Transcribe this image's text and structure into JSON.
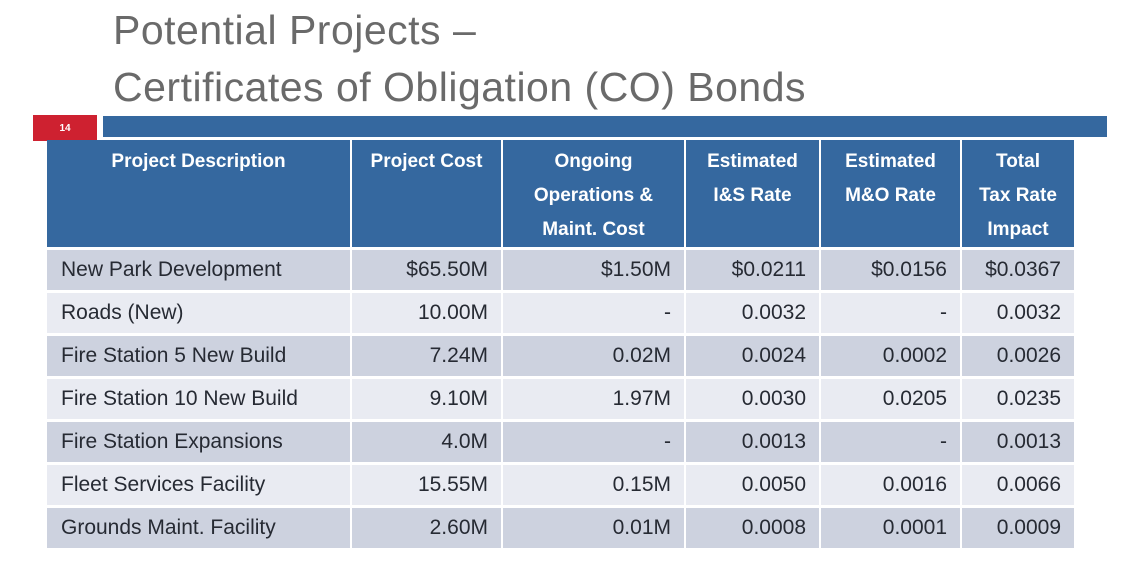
{
  "slide": {
    "title": "Potential Projects –\nCertificates of Obligation (CO) Bonds",
    "page_number": "14"
  },
  "colors": {
    "accent_blue": "#35689F",
    "badge_red": "#CE2130",
    "row_odd": "#CDD2DF",
    "row_even": "#E9EBF2",
    "title_gray": "#6A6A6A",
    "body_text": "#262A33"
  },
  "table": {
    "headers": [
      "Project Description",
      "Project Cost",
      "Ongoing\nOperations &\nMaint. Cost",
      "Estimated\nI&S Rate",
      "Estimated\nM&O Rate",
      "Total\nTax Rate\nImpact"
    ],
    "rows": [
      {
        "cells": [
          "New Park Development",
          "$65.50M",
          "$1.50M",
          "$0.0211",
          "$0.0156",
          "$0.0367"
        ]
      },
      {
        "cells": [
          "Roads (New)",
          "10.00M",
          "-",
          "0.0032",
          "-",
          "0.0032"
        ]
      },
      {
        "cells": [
          "Fire Station 5 New Build",
          "7.24M",
          "0.02M",
          "0.0024",
          "0.0002",
          "0.0026"
        ]
      },
      {
        "cells": [
          "Fire Station 10 New Build",
          "9.10M",
          "1.97M",
          "0.0030",
          "0.0205",
          "0.0235"
        ]
      },
      {
        "cells": [
          "Fire Station Expansions",
          "4.0M",
          "-",
          "0.0013",
          "-",
          "0.0013"
        ]
      },
      {
        "cells": [
          "Fleet Services Facility",
          "15.55M",
          "0.15M",
          "0.0050",
          "0.0016",
          "0.0066"
        ]
      },
      {
        "cells": [
          "Grounds Maint. Facility",
          "2.60M",
          "0.01M",
          "0.0008",
          "0.0001",
          "0.0009"
        ]
      }
    ]
  },
  "chart_data": {
    "type": "table",
    "title": "Potential Projects – Certificates of Obligation (CO) Bonds",
    "categories": [
      "New Park Development",
      "Roads (New)",
      "Fire Station 5 New Build",
      "Fire Station 10 New Build",
      "Fire Station Expansions",
      "Fleet Services Facility",
      "Grounds Maint. Facility"
    ],
    "series": [
      {
        "name": "Project Cost ($M)",
        "values": [
          65.5,
          10.0,
          7.24,
          9.1,
          4.0,
          15.55,
          2.6
        ]
      },
      {
        "name": "Ongoing Operations & Maint. Cost ($M)",
        "values": [
          1.5,
          null,
          0.02,
          1.97,
          null,
          0.15,
          0.01
        ]
      },
      {
        "name": "Estimated I&S Rate ($)",
        "values": [
          0.0211,
          0.0032,
          0.0024,
          0.003,
          0.0013,
          0.005,
          0.0008
        ]
      },
      {
        "name": "Estimated M&O Rate ($)",
        "values": [
          0.0156,
          null,
          0.0002,
          0.0205,
          null,
          0.0016,
          0.0001
        ]
      },
      {
        "name": "Total Tax Rate Impact ($)",
        "values": [
          0.0367,
          0.0032,
          0.0026,
          0.0235,
          0.0013,
          0.0066,
          0.0009
        ]
      }
    ]
  }
}
